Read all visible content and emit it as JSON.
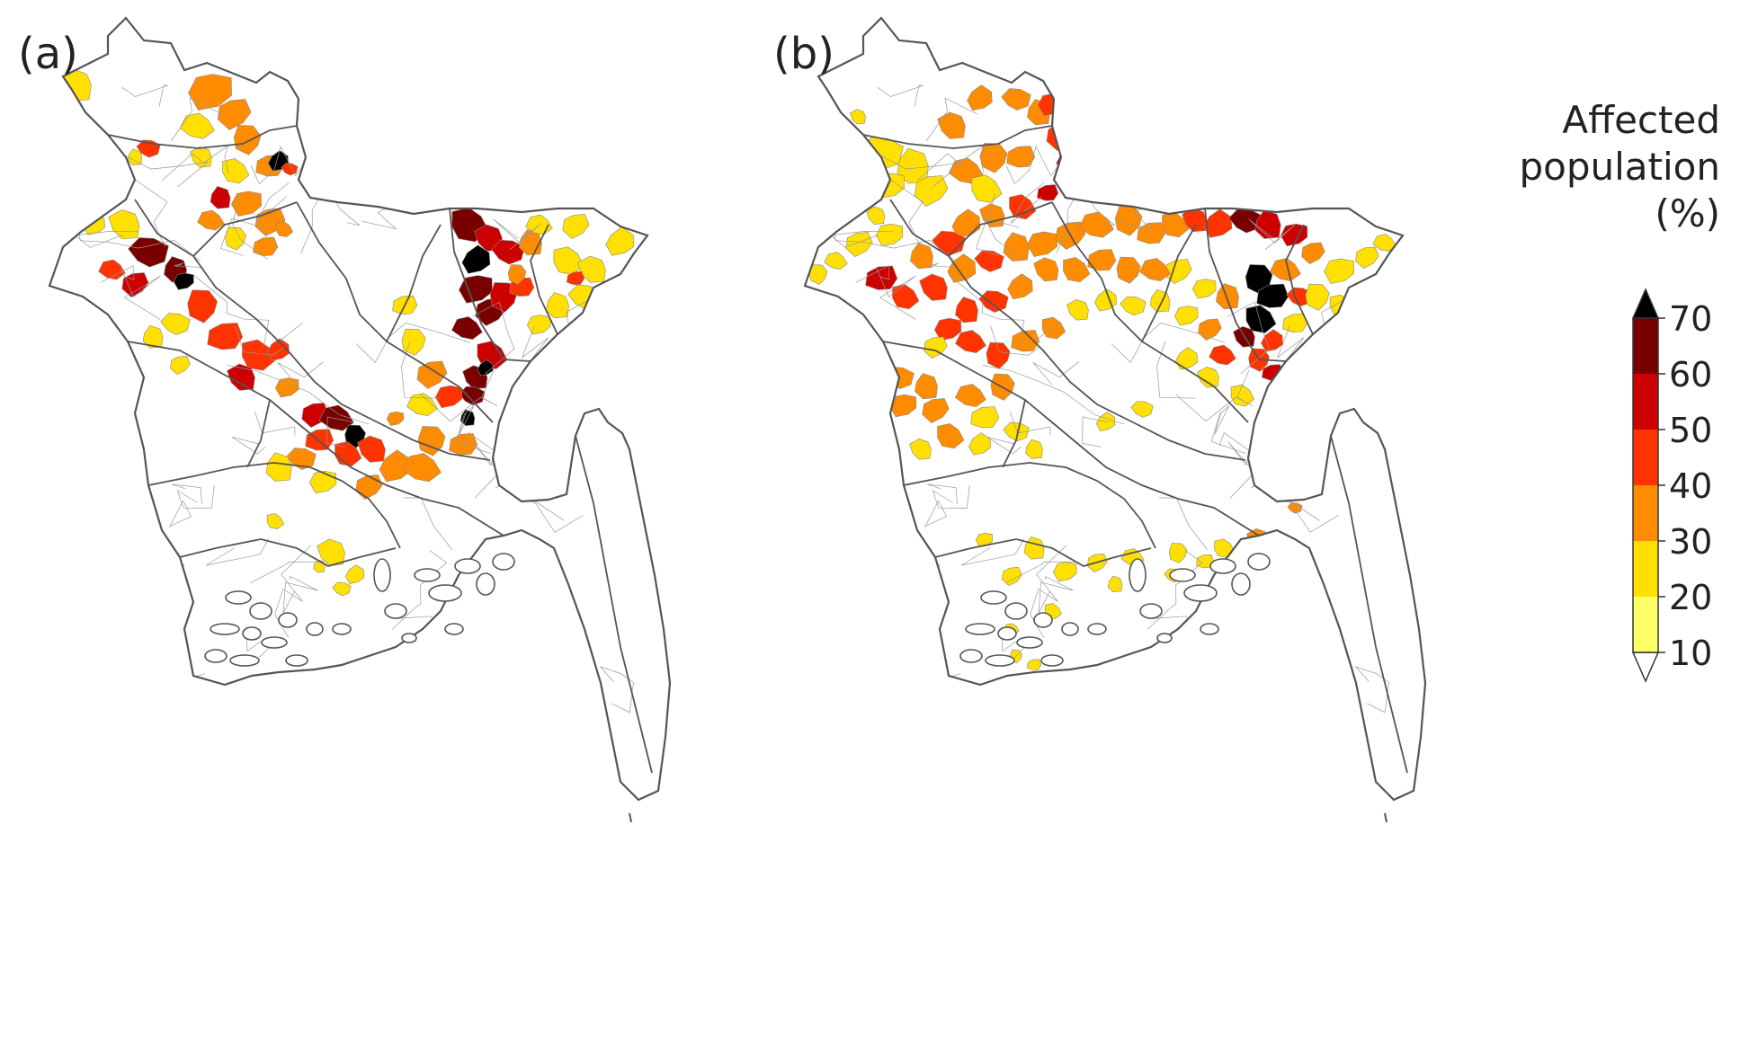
{
  "panels": [
    {
      "id": "a",
      "label": "(a)",
      "style": "orange"
    },
    {
      "id": "b",
      "label": "(b)",
      "style": "yellow"
    }
  ],
  "legend": {
    "title_lines": [
      "Affected",
      "population",
      "(%)"
    ],
    "ticks": [
      "10",
      "20",
      "30",
      "40",
      "50",
      "60",
      "70"
    ],
    "bins": [
      {
        "from": 10,
        "to": 20,
        "color": "#ffff66"
      },
      {
        "from": 20,
        "to": 30,
        "color": "#ffe000"
      },
      {
        "from": 30,
        "to": 40,
        "color": "#ff8c00"
      },
      {
        "from": 40,
        "to": 50,
        "color": "#ff3300"
      },
      {
        "from": 50,
        "to": 60,
        "color": "#cc0000"
      },
      {
        "from": 60,
        "to": 70,
        "color": "#7a0000"
      }
    ],
    "over_color": "#000000",
    "under_color": "#ffffff"
  },
  "colors": {
    "outline": "#555555",
    "internal": "#999999",
    "no_data": "#ffffff"
  }
}
